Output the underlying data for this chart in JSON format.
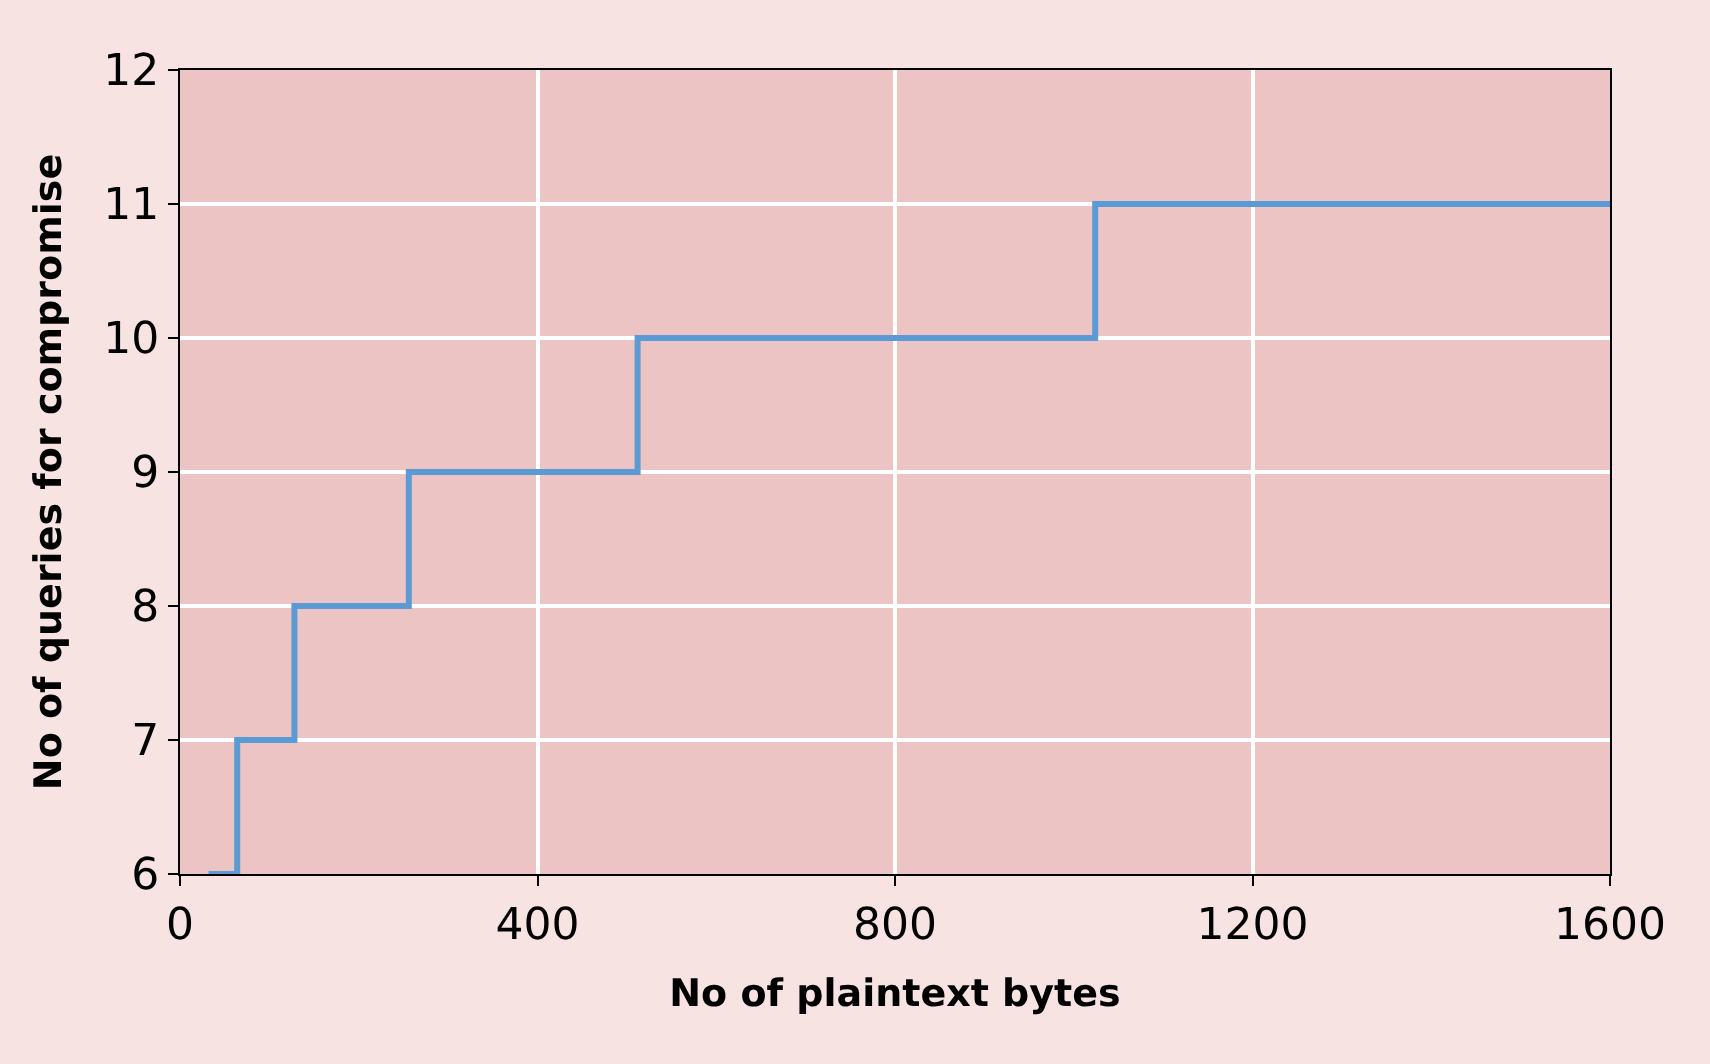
{
  "chart_data": {
    "type": "step",
    "xlabel": "No of plaintext bytes",
    "ylabel": "No of queries for compromise",
    "x": [
      32,
      64,
      128,
      256,
      512,
      1024,
      1600
    ],
    "series": [
      {
        "color": "#5b9bd5",
        "values": [
          6,
          7,
          8,
          9,
          10,
          11,
          11
        ]
      }
    ],
    "xlim": [
      0,
      1600
    ],
    "xticks": [
      0,
      400,
      800,
      1200,
      1600
    ],
    "ylim": [
      6,
      12
    ],
    "yticks": [
      6,
      7,
      8,
      9,
      10,
      11,
      12
    ],
    "grid": true,
    "legend": false,
    "marker": "none",
    "line_style": "solid"
  }
}
